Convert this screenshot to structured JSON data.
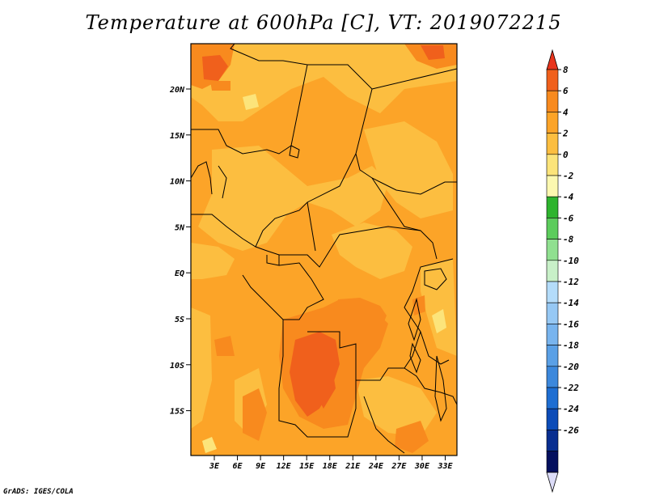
{
  "title": "Temperature at 600hPa [C], VT: 2019072215",
  "credit": "GrADS: IGES/COLA",
  "map": {
    "lon_labels": [
      "3E",
      "6E",
      "9E",
      "12E",
      "15E",
      "18E",
      "21E",
      "24E",
      "27E",
      "30E",
      "33E"
    ],
    "lat_labels": [
      "20N",
      "15N",
      "10N",
      "5N",
      "EQ",
      "5S",
      "10S",
      "15S"
    ],
    "lon_range": [
      0,
      35
    ],
    "lat_range": [
      -20,
      25
    ]
  },
  "colorbar": {
    "levels": [
      "8",
      "6",
      "4",
      "2",
      "0",
      "-2",
      "-4",
      "-6",
      "-8",
      "-10",
      "-12",
      "-14",
      "-16",
      "-18",
      "-20",
      "-22",
      "-24",
      "-26"
    ],
    "colors": [
      "#e8341c",
      "#f0601c",
      "#f88a1e",
      "#fca428",
      "#fcbe40",
      "#fce47a",
      "#fcf8b0",
      "#2eb42e",
      "#5ccc5c",
      "#90e090",
      "#c8f0c8",
      "#b4dcfa",
      "#96c8f4",
      "#78b4ee",
      "#5aa0e6",
      "#3c88dc",
      "#1e6ed2",
      "#0c4cb8",
      "#082e90",
      "#04105e",
      "#dcdcf8"
    ]
  },
  "colors": {
    "base": "#fca428",
    "light": "#fcbe40",
    "warm": "#f88a1e",
    "hot": "#f0601c",
    "pale": "#fce47a"
  }
}
